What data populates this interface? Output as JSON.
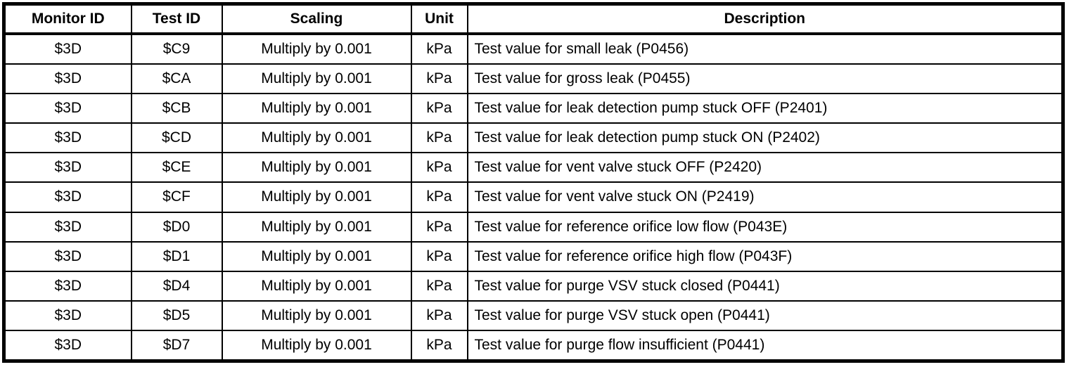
{
  "page": {
    "background_color": "#ffffff",
    "border_color": "#000000",
    "text_color": "#000000"
  },
  "table": {
    "columns": [
      {
        "label": "Monitor ID"
      },
      {
        "label": "Test ID"
      },
      {
        "label": "Scaling"
      },
      {
        "label": "Unit"
      },
      {
        "label": "Description"
      }
    ],
    "rows": [
      {
        "monitor_id": "$3D",
        "test_id": "$C9",
        "scaling": "Multiply by 0.001",
        "unit": "kPa",
        "description": "Test value for small leak (P0456)"
      },
      {
        "monitor_id": "$3D",
        "test_id": "$CA",
        "scaling": "Multiply by 0.001",
        "unit": "kPa",
        "description": "Test value for gross leak (P0455)"
      },
      {
        "monitor_id": "$3D",
        "test_id": "$CB",
        "scaling": "Multiply by 0.001",
        "unit": "kPa",
        "description": "Test value for leak detection pump stuck OFF (P2401)"
      },
      {
        "monitor_id": "$3D",
        "test_id": "$CD",
        "scaling": "Multiply by 0.001",
        "unit": "kPa",
        "description": "Test value for leak detection pump stuck ON (P2402)"
      },
      {
        "monitor_id": "$3D",
        "test_id": "$CE",
        "scaling": "Multiply by 0.001",
        "unit": "kPa",
        "description": "Test value for vent valve stuck OFF (P2420)"
      },
      {
        "monitor_id": "$3D",
        "test_id": "$CF",
        "scaling": "Multiply by 0.001",
        "unit": "kPa",
        "description": "Test value for vent valve stuck ON (P2419)"
      },
      {
        "monitor_id": "$3D",
        "test_id": "$D0",
        "scaling": "Multiply by 0.001",
        "unit": "kPa",
        "description": "Test value for reference orifice low flow (P043E)"
      },
      {
        "monitor_id": "$3D",
        "test_id": "$D1",
        "scaling": "Multiply by 0.001",
        "unit": "kPa",
        "description": "Test value for reference orifice high flow (P043F)"
      },
      {
        "monitor_id": "$3D",
        "test_id": "$D4",
        "scaling": "Multiply by 0.001",
        "unit": "kPa",
        "description": "Test value for purge VSV stuck closed (P0441)"
      },
      {
        "monitor_id": "$3D",
        "test_id": "$D5",
        "scaling": "Multiply by 0.001",
        "unit": "kPa",
        "description": "Test value for purge VSV stuck open (P0441)"
      },
      {
        "monitor_id": "$3D",
        "test_id": "$D7",
        "scaling": "Multiply by 0.001",
        "unit": "kPa",
        "description": "Test value for purge flow insufficient (P0441)"
      }
    ]
  }
}
